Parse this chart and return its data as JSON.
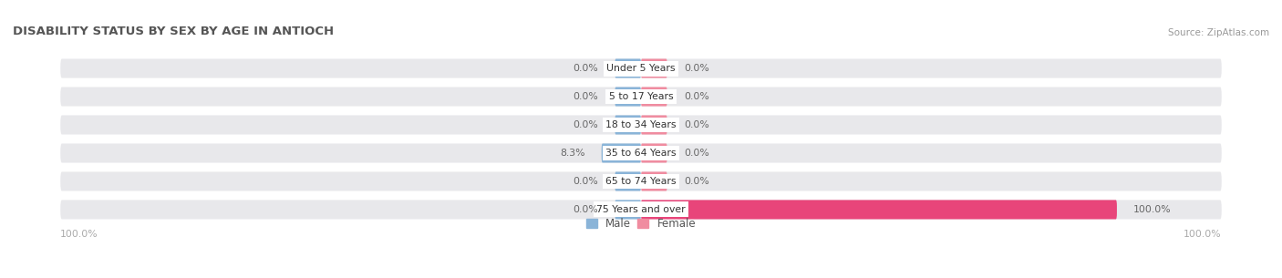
{
  "title": "DISABILITY STATUS BY SEX BY AGE IN ANTIOCH",
  "source": "Source: ZipAtlas.com",
  "categories": [
    "Under 5 Years",
    "5 to 17 Years",
    "18 to 34 Years",
    "35 to 64 Years",
    "65 to 74 Years",
    "75 Years and over"
  ],
  "male_values": [
    0.0,
    0.0,
    0.0,
    8.3,
    0.0,
    0.0
  ],
  "female_values": [
    0.0,
    0.0,
    0.0,
    0.0,
    0.0,
    100.0
  ],
  "male_color": "#8ab4d8",
  "female_color": "#f08ca0",
  "female_color_full": "#e8457a",
  "bar_bg_color": "#e8e8eb",
  "title_color": "#555555",
  "label_color": "#666666",
  "tick_label_color": "#aaaaaa",
  "category_label_color": "#333333",
  "max_value": 100.0,
  "left_axis_label": "100.0%",
  "right_axis_label": "100.0%",
  "fig_width": 14.06,
  "fig_height": 3.05
}
